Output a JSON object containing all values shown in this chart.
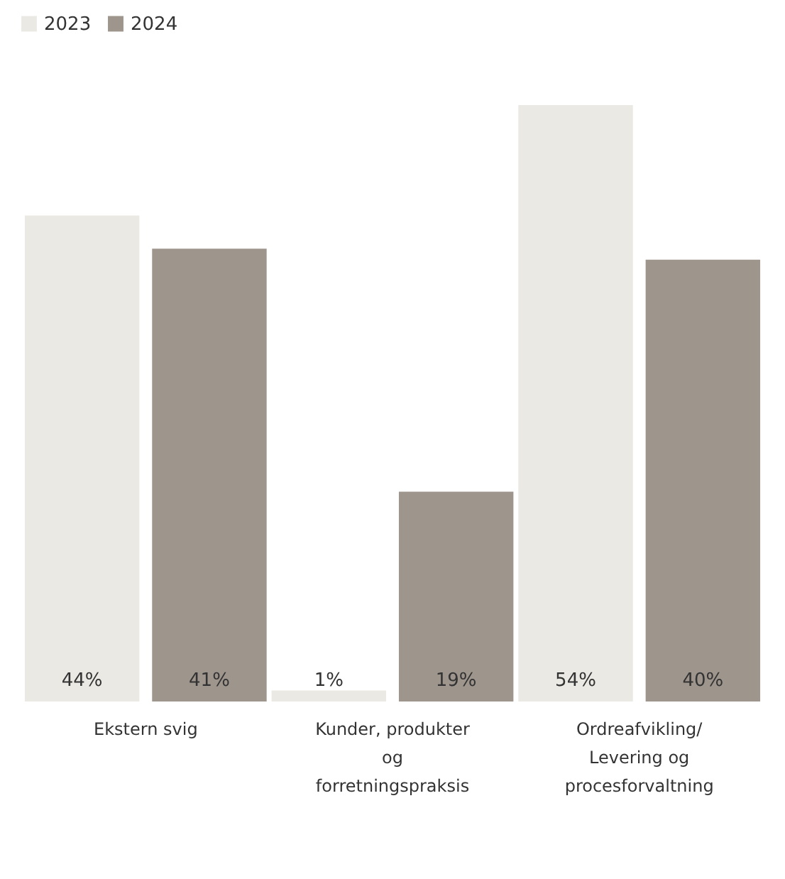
{
  "chart_data": {
    "type": "bar",
    "categories": [
      "Ekstern svig",
      "Kunder, produkter og forretningspraksis",
      "Ordreafvikling/ Levering og procesforvaltning"
    ],
    "series": [
      {
        "name": "2023",
        "color": "#ebe9e4",
        "values": [
          44,
          1,
          54
        ],
        "value_labels": [
          "44%",
          "1%",
          "54%"
        ]
      },
      {
        "name": "2024",
        "color": "#9e958d",
        "values": [
          41,
          19,
          40
        ],
        "value_labels": [
          "41%",
          "19%",
          "40%"
        ]
      }
    ],
    "legend": "top left",
    "grid": false
  }
}
